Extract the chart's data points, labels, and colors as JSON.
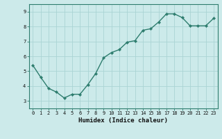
{
  "x": [
    0,
    1,
    2,
    3,
    4,
    5,
    6,
    7,
    8,
    9,
    10,
    11,
    12,
    13,
    14,
    15,
    16,
    17,
    18,
    19,
    20,
    21,
    22,
    23
  ],
  "y": [
    5.4,
    4.6,
    3.85,
    3.6,
    3.2,
    3.45,
    3.45,
    4.1,
    4.85,
    5.9,
    6.25,
    6.45,
    6.95,
    7.05,
    7.75,
    7.85,
    8.3,
    8.85,
    8.85,
    8.6,
    8.05,
    8.05,
    8.05,
    8.55
  ],
  "line_color": "#2e7d6e",
  "marker": "D",
  "marker_size": 2.2,
  "background_color": "#cceaea",
  "grid_color": "#aad4d4",
  "xlabel": "Humidex (Indice chaleur)",
  "ylim": [
    2.5,
    9.5
  ],
  "xlim": [
    -0.5,
    23.5
  ],
  "yticks": [
    3,
    4,
    5,
    6,
    7,
    8,
    9
  ],
  "xticks": [
    0,
    1,
    2,
    3,
    4,
    5,
    6,
    7,
    8,
    9,
    10,
    11,
    12,
    13,
    14,
    15,
    16,
    17,
    18,
    19,
    20,
    21,
    22,
    23
  ],
  "tick_fontsize": 5.0,
  "xlabel_fontsize": 6.5,
  "line_width": 1.0,
  "spine_color": "#2e7d6e",
  "tick_color": "#2e7d6e"
}
